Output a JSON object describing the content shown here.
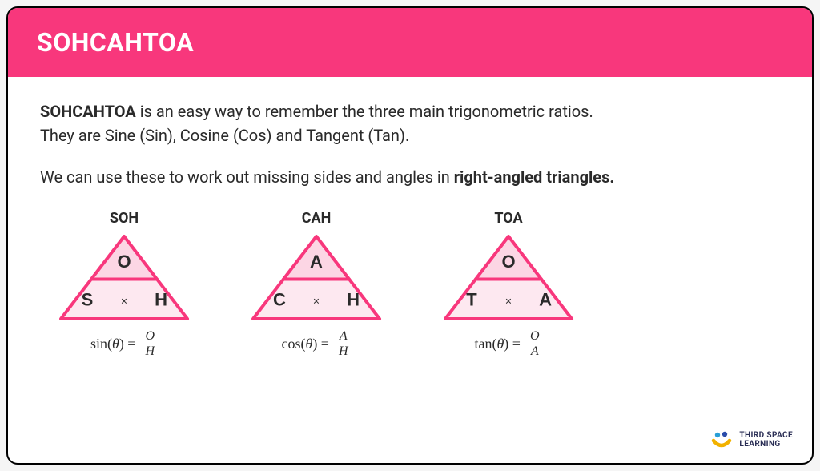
{
  "header": {
    "title": "SOHCAHTOA"
  },
  "intro": {
    "strong": "SOHCAHTOA",
    "rest1": " is an easy way to remember the three main trigonometric ratios.",
    "line2": "They are Sine (Sin), Cosine (Cos) and Tangent (Tan)."
  },
  "usage": {
    "pre": "We can use these to work out missing sides and angles in ",
    "strong": "right-angled triangles."
  },
  "colors": {
    "header_bg": "#f8377c",
    "card_bg": "#ffffff",
    "card_border": "#000000",
    "text": "#2a2a2a",
    "tri_stroke": "#f8377c",
    "tri_fill_top": "#fcd6e4",
    "tri_fill_bottom": "#fde8f0",
    "tri_letter": "#2a2a2a"
  },
  "triangles": [
    {
      "label": "SOH",
      "top_letter": "O",
      "bottom_left": "S",
      "bottom_right": "H",
      "formula_func": "sin",
      "formula_num": "O",
      "formula_den": "H"
    },
    {
      "label": "CAH",
      "top_letter": "A",
      "bottom_left": "C",
      "bottom_right": "H",
      "formula_func": "cos",
      "formula_num": "A",
      "formula_den": "H"
    },
    {
      "label": "TOA",
      "top_letter": "O",
      "bottom_left": "T",
      "bottom_right": "A",
      "formula_func": "tan",
      "formula_num": "O",
      "formula_den": "A"
    }
  ],
  "logo": {
    "line1": "THIRD SPACE",
    "line2": "LEARNING",
    "dot1": "#2a9fd6",
    "dot2": "#2a4caa",
    "arc": "#f2b200"
  },
  "triangle_geom": {
    "width": 170,
    "height": 115,
    "stroke_width": 4,
    "font_size_letter": 22,
    "font_size_times": 14
  }
}
